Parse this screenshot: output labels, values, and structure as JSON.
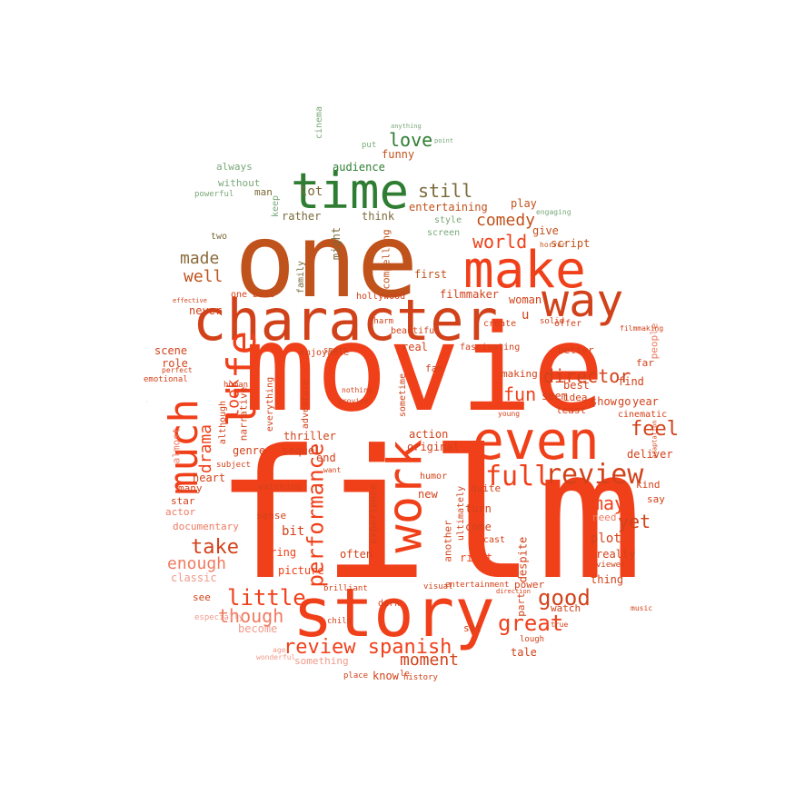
{
  "palette": {
    "red": "#f0401a",
    "red_dark": "#d2421a",
    "brown": "#c0521c",
    "orange_light": "#f07a60",
    "pink": "#f09a8a",
    "green": "#2e7d32",
    "green_light": "#7aa87a",
    "gray": "#b0a89a"
  },
  "words": [
    {
      "text": "film"
    },
    {
      "text": "movie"
    },
    {
      "text": "one"
    },
    {
      "text": "story"
    },
    {
      "text": "character"
    },
    {
      "text": "make"
    },
    {
      "text": "way"
    },
    {
      "text": "even"
    },
    {
      "text": "time"
    },
    {
      "text": "much"
    },
    {
      "text": "life"
    },
    {
      "text": "work"
    },
    {
      "text": "review"
    },
    {
      "text": "full"
    },
    {
      "text": "performance"
    },
    {
      "text": "review spanish"
    },
    {
      "text": "good"
    },
    {
      "text": "great"
    },
    {
      "text": "little"
    },
    {
      "text": "though"
    },
    {
      "text": "take"
    },
    {
      "text": "enough"
    },
    {
      "text": "director"
    },
    {
      "text": "feel"
    },
    {
      "text": "world"
    },
    {
      "text": "comedy"
    },
    {
      "text": "still"
    },
    {
      "text": "love"
    },
    {
      "text": "made"
    },
    {
      "text": "well"
    },
    {
      "text": "look"
    },
    {
      "text": "drama"
    },
    {
      "text": "fun"
    },
    {
      "text": "may"
    },
    {
      "text": "yet"
    },
    {
      "text": "moment"
    },
    {
      "text": "audience"
    },
    {
      "text": "funny"
    },
    {
      "text": "lot"
    },
    {
      "text": "rather"
    },
    {
      "text": "think"
    },
    {
      "text": "entertaining"
    },
    {
      "text": "play"
    },
    {
      "text": "script"
    },
    {
      "text": "give"
    },
    {
      "text": "first"
    },
    {
      "text": "filmmaker"
    },
    {
      "text": "woman"
    },
    {
      "text": "scene"
    },
    {
      "text": "role"
    },
    {
      "text": "never"
    },
    {
      "text": "one best"
    },
    {
      "text": "hollywood"
    },
    {
      "text": "family"
    },
    {
      "text": "compelling"
    },
    {
      "text": "might"
    },
    {
      "text": "end"
    },
    {
      "text": "bit"
    },
    {
      "text": "sequel"
    },
    {
      "text": "thriller"
    },
    {
      "text": "original"
    },
    {
      "text": "action"
    },
    {
      "text": "genre"
    },
    {
      "text": "heart"
    },
    {
      "text": "many"
    },
    {
      "text": "star"
    },
    {
      "text": "documentary"
    },
    {
      "text": "actor"
    },
    {
      "text": "classic"
    },
    {
      "text": "see"
    },
    {
      "text": "become"
    },
    {
      "text": "something"
    },
    {
      "text": "know"
    },
    {
      "text": "picture"
    },
    {
      "text": "bring"
    },
    {
      "text": "often"
    },
    {
      "text": "experience"
    },
    {
      "text": "new"
    },
    {
      "text": "come"
    },
    {
      "text": "turn"
    },
    {
      "text": "right"
    },
    {
      "text": "despite"
    },
    {
      "text": "plot"
    },
    {
      "text": "really"
    },
    {
      "text": "thing"
    },
    {
      "text": "watch"
    },
    {
      "text": "tale"
    },
    {
      "text": "part"
    },
    {
      "text": "set"
    },
    {
      "text": "another"
    },
    {
      "text": "quite"
    },
    {
      "text": "making"
    },
    {
      "text": "seem"
    },
    {
      "text": "least"
    },
    {
      "text": "best"
    },
    {
      "text": "idea"
    },
    {
      "text": "show"
    },
    {
      "text": "year"
    },
    {
      "text": "go"
    },
    {
      "text": "find"
    },
    {
      "text": "kind"
    },
    {
      "text": "deliver"
    },
    {
      "text": "say"
    },
    {
      "text": "need"
    },
    {
      "text": "people"
    },
    {
      "text": "far"
    },
    {
      "text": "better"
    },
    {
      "text": "real"
    },
    {
      "text": "fan"
    },
    {
      "text": "beautiful"
    },
    {
      "text": "fascinating"
    },
    {
      "text": "create"
    },
    {
      "text": "offer"
    },
    {
      "text": "cinematic"
    },
    {
      "text": "always"
    },
    {
      "text": "without"
    },
    {
      "text": "man"
    },
    {
      "text": "two"
    },
    {
      "text": "cinema"
    },
    {
      "text": "style"
    },
    {
      "text": "screen"
    },
    {
      "text": "enjoyable"
    },
    {
      "text": "narrative"
    },
    {
      "text": "although"
    },
    {
      "text": "sometime"
    },
    {
      "text": "adventure"
    },
    {
      "text": "everything"
    },
    {
      "text": "watching"
    },
    {
      "text": "sense"
    },
    {
      "text": "ultimately"
    },
    {
      "text": "u"
    },
    {
      "text": "charm"
    },
    {
      "text": "solid"
    },
    {
      "text": "almost"
    },
    {
      "text": "especially"
    },
    {
      "text": "subject"
    },
    {
      "text": "human"
    },
    {
      "text": "emotional"
    },
    {
      "text": "keep"
    },
    {
      "text": "powerful"
    },
    {
      "text": "power"
    },
    {
      "text": "cast"
    },
    {
      "text": "brilliant"
    },
    {
      "text": "entertainment"
    },
    {
      "text": "visual"
    },
    {
      "text": "dark"
    },
    {
      "text": "humor"
    },
    {
      "text": "place"
    },
    {
      "text": "history"
    },
    {
      "text": "lough"
    },
    {
      "text": "le"
    },
    {
      "text": "child"
    },
    {
      "text": "viewer"
    },
    {
      "text": "engaging"
    },
    {
      "text": "horror"
    },
    {
      "text": "anything"
    },
    {
      "text": "point"
    },
    {
      "text": "put"
    },
    {
      "text": "smart"
    },
    {
      "text": "nothing"
    },
    {
      "text": "want"
    },
    {
      "text": "provide"
    },
    {
      "text": "music"
    },
    {
      "text": "true"
    },
    {
      "text": "young"
    },
    {
      "text": "age"
    },
    {
      "text": "filmmaking"
    },
    {
      "text": "adaptation"
    },
    {
      "text": "direction"
    },
    {
      "text": "perfect"
    },
    {
      "text": "effective"
    },
    {
      "text": "wonderful"
    }
  ]
}
